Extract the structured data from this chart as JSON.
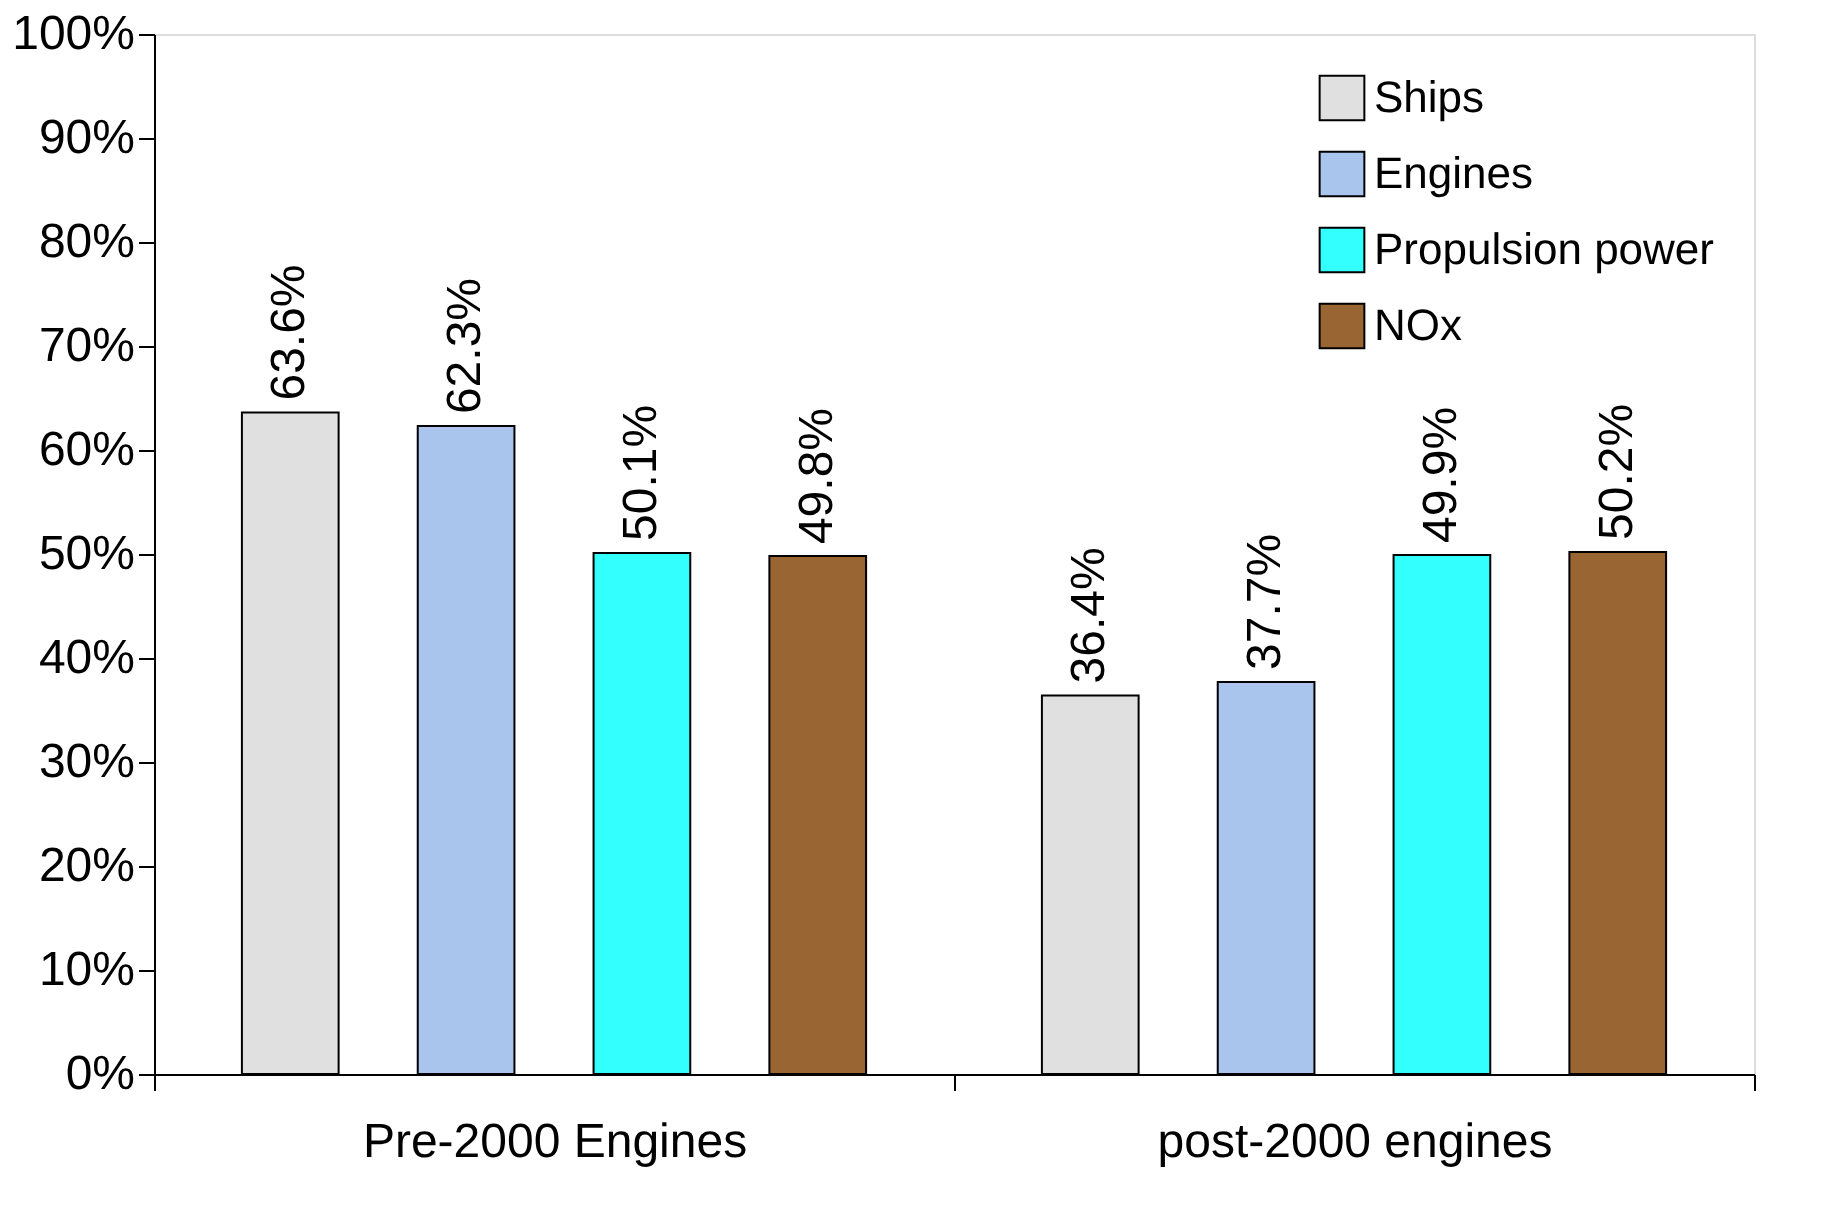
{
  "chart_data": {
    "type": "bar",
    "categories": [
      "Pre-2000 Engines",
      "post-2000 engines"
    ],
    "series": [
      {
        "name": "Ships",
        "color": "#e0e0e0",
        "values": [
          63.6,
          36.4
        ],
        "value_labels": [
          "63.6%",
          "36.4%"
        ]
      },
      {
        "name": "Engines",
        "color": "#a9c5ed",
        "values": [
          62.3,
          37.7
        ],
        "value_labels": [
          "62.3%",
          "37.7%"
        ]
      },
      {
        "name": "Propulsion power",
        "color": "#33ffff",
        "values": [
          50.1,
          49.9
        ],
        "value_labels": [
          "50.1%",
          "49.9%"
        ]
      },
      {
        "name": "NOx",
        "color": "#996633",
        "values": [
          49.8,
          50.2
        ],
        "value_labels": [
          "49.8%",
          "50.2%"
        ]
      }
    ],
    "ylim": [
      0,
      100
    ],
    "yticks": [
      {
        "value": 0,
        "label": "0%"
      },
      {
        "value": 10,
        "label": "10%"
      },
      {
        "value": 20,
        "label": "20%"
      },
      {
        "value": 30,
        "label": "30%"
      },
      {
        "value": 40,
        "label": "40%"
      },
      {
        "value": 50,
        "label": "50%"
      },
      {
        "value": 60,
        "label": "60%"
      },
      {
        "value": 70,
        "label": "70%"
      },
      {
        "value": 80,
        "label": "80%"
      },
      {
        "value": 90,
        "label": "90%"
      },
      {
        "value": 100,
        "label": "100%"
      }
    ],
    "grid": false,
    "legend": "top right"
  }
}
